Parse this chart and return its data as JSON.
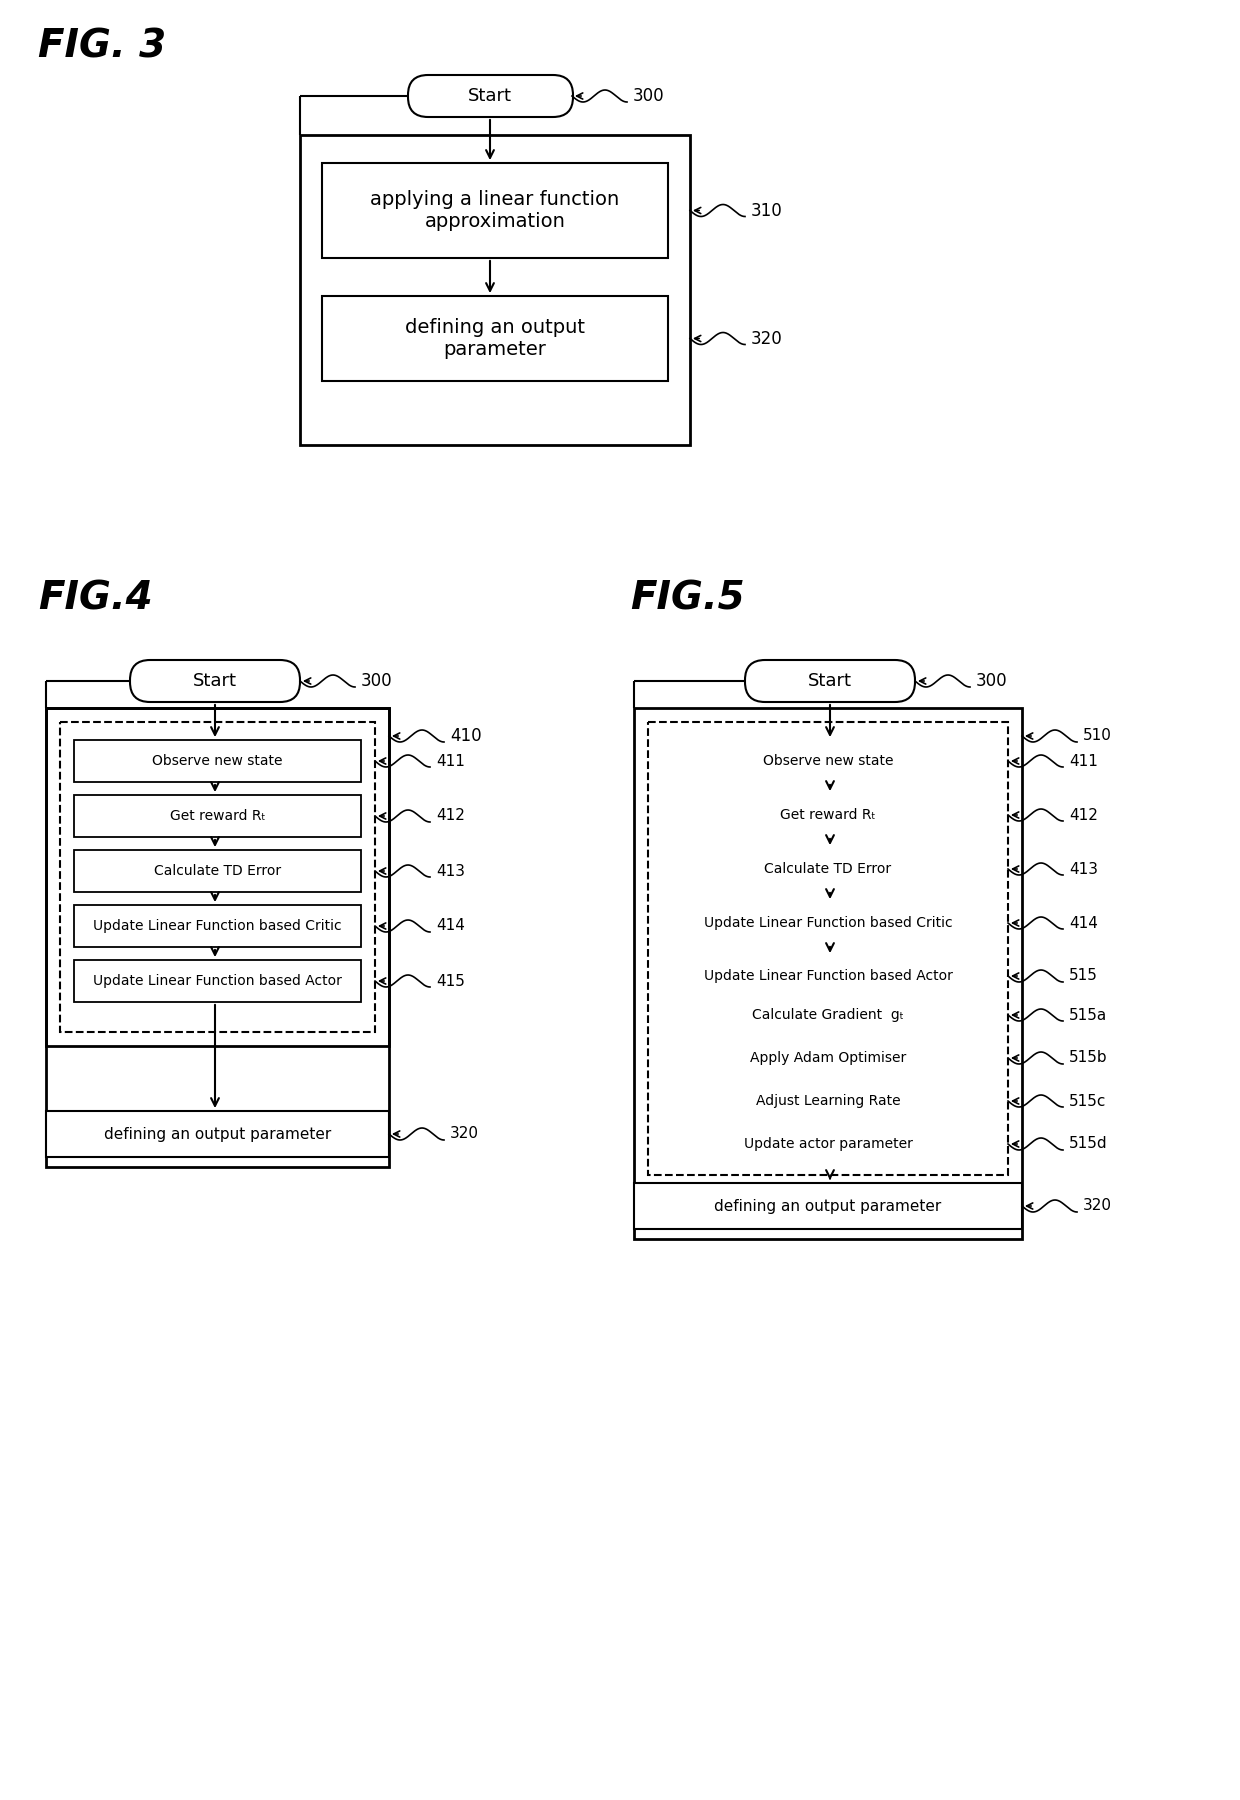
{
  "bg_color": "#ffffff",
  "fig_title_3": "FIG. 3",
  "fig_title_4": "FIG.4",
  "fig_title_5": "FIG.5",
  "fig3": {
    "start_label": "Start",
    "start_ref": "300",
    "box1_label": "applying a linear function\napproximation",
    "box1_ref": "310",
    "box2_label": "defining an output\nparameter",
    "box2_ref": "320"
  },
  "fig4": {
    "start_label": "Start",
    "start_ref": "300",
    "outer_ref": "410",
    "boxes": [
      {
        "label": "Observe new state",
        "ref": "411"
      },
      {
        "label": "Get reward Rₜ",
        "ref": "412"
      },
      {
        "label": "Calculate TD Error",
        "ref": "413"
      },
      {
        "label": "Update Linear Function based Critic",
        "ref": "414"
      },
      {
        "label": "Update Linear Function based Actor",
        "ref": "415"
      }
    ],
    "output_label": "defining an output parameter",
    "output_ref": "320"
  },
  "fig5": {
    "start_label": "Start",
    "start_ref": "300",
    "outer_ref": "510",
    "boxes": [
      {
        "label": "Observe new state",
        "ref": "411"
      },
      {
        "label": "Get reward Rₜ",
        "ref": "412"
      },
      {
        "label": "Calculate TD Error",
        "ref": "413"
      },
      {
        "label": "Update Linear Function based Critic",
        "ref": "414"
      }
    ],
    "actor_box_label": "Update Linear Function based Actor",
    "actor_ref": "515",
    "sub_boxes": [
      {
        "label": "Calculate Gradient  gₜ",
        "ref": "515a"
      },
      {
        "label": "Apply Adam Optimiser",
        "ref": "515b"
      },
      {
        "label": "Adjust Learning Rate",
        "ref": "515c"
      },
      {
        "label": "Update actor parameter",
        "ref": "515d"
      }
    ],
    "output_label": "defining an output parameter",
    "output_ref": "320"
  }
}
